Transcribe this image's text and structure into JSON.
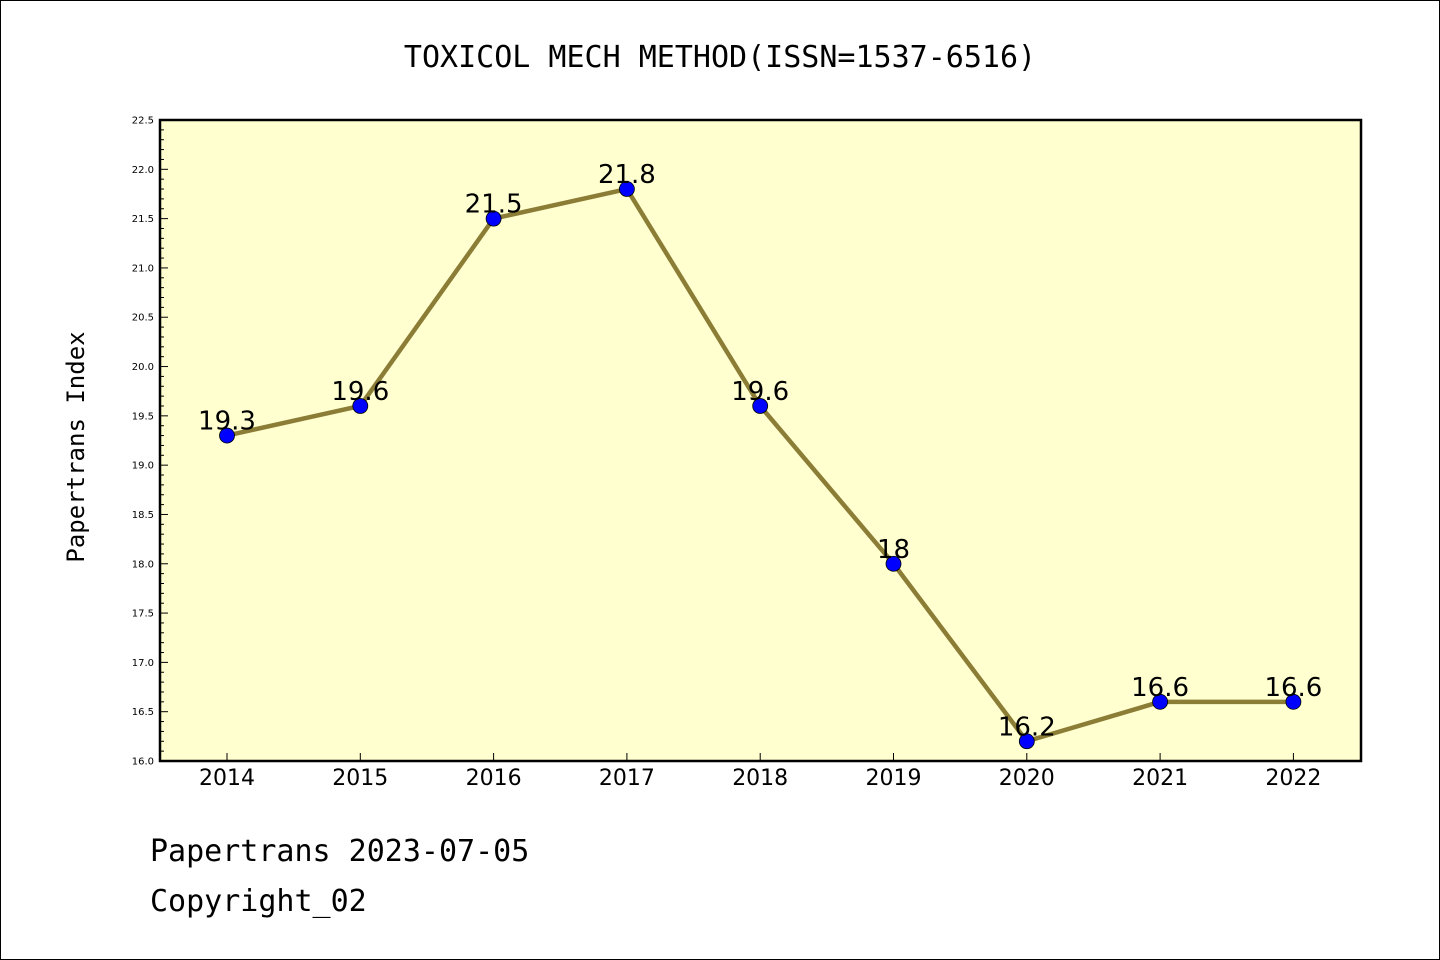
{
  "chart_data": {
    "type": "line",
    "title": "TOXICOL MECH METHOD(ISSN=1537-6516)",
    "ylabel": "Papertrans Index",
    "xlabel": "",
    "categories": [
      "2014",
      "2015",
      "2016",
      "2017",
      "2018",
      "2019",
      "2020",
      "2021",
      "2022"
    ],
    "values": [
      19.3,
      19.6,
      21.5,
      21.8,
      19.6,
      18,
      16.2,
      16.6,
      16.6
    ],
    "data_labels": [
      "19.3",
      "19.6",
      "21.5",
      "21.8",
      "19.6",
      "18",
      "16.2",
      "16.6",
      "16.6"
    ],
    "ylim": [
      16.0,
      22.5
    ],
    "yticks": [
      "16.0",
      "16.5",
      "17.0",
      "17.5",
      "18.0",
      "18.5",
      "19.0",
      "19.5",
      "20.0",
      "20.5",
      "21.0",
      "21.5",
      "22.0",
      "22.5"
    ],
    "grid": false,
    "legend": "none",
    "colors": {
      "plot_background": "#ffffd0",
      "line": "#8b7d35",
      "marker": "#0000ff"
    }
  },
  "footer": {
    "date_line": "Papertrans 2023-07-05",
    "copyright": "Copyright_02"
  }
}
